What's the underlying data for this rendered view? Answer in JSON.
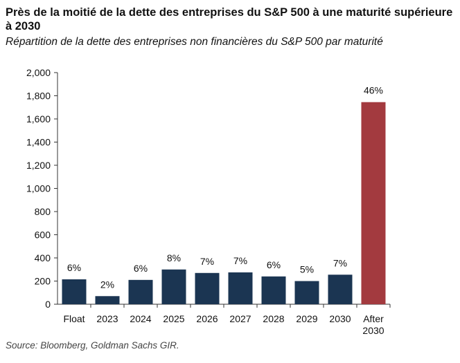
{
  "header": {
    "title": "Près de la moitié de la dette des entreprises du S&P 500 à une maturité supérieure à 2030",
    "subtitle": "Répartition de la dette des entreprises non financières du S&P 500 par maturité"
  },
  "footer": {
    "source": "Source: Bloomberg, Goldman Sachs GIR."
  },
  "colors": {
    "bar": "#1b3552",
    "highlight": "#a33a3f",
    "axis": "#333333"
  },
  "chart_data": {
    "type": "bar",
    "title": "Près de la moitié de la dette des entreprises du S&P 500 à une maturité supérieure à 2030",
    "subtitle": "Répartition de la dette des entreprises non financières du S&P 500 par maturité",
    "xlabel": "",
    "ylabel": "",
    "ylim": [
      0,
      2000
    ],
    "yticks": [
      0,
      200,
      400,
      600,
      800,
      1000,
      1200,
      1400,
      1600,
      1800,
      2000
    ],
    "ytick_labels": [
      "0",
      "200",
      "400",
      "600",
      "800",
      "1,000",
      "1,200",
      "1,400",
      "1,600",
      "1,800",
      "2,000"
    ],
    "categories": [
      "Float",
      "2023",
      "2024",
      "2025",
      "2026",
      "2027",
      "2028",
      "2029",
      "2030",
      "After 2030"
    ],
    "values": [
      215,
      70,
      210,
      300,
      270,
      275,
      240,
      200,
      255,
      1745
    ],
    "data_labels": [
      "6%",
      "2%",
      "6%",
      "8%",
      "7%",
      "7%",
      "6%",
      "5%",
      "7%",
      "46%"
    ],
    "highlight_category": "After 2030",
    "grid": false
  }
}
